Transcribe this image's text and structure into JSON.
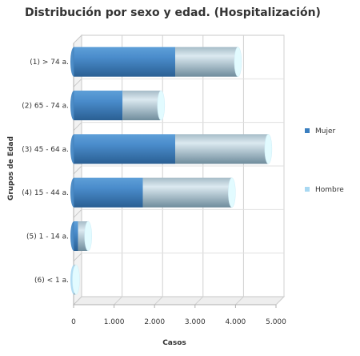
{
  "chart_data": {
    "type": "bar",
    "orientation": "horizontal",
    "stacked": true,
    "style": "3d-cylinder",
    "title": "Distribución por sexo y edad. (Hospitalización)",
    "xlabel": "Casos",
    "ylabel": "Grupos de Edad",
    "categories": [
      "(1) > 74 a.",
      "(2) 65 - 74 a.",
      "(3) 45 - 64 a.",
      "(4) 15 - 44 a.",
      "(5) 1 - 14 a.",
      "(6) < 1 a."
    ],
    "series": [
      {
        "name": "Mujer",
        "color": "#3a7fc0",
        "values": [
          2500,
          1200,
          2500,
          1700,
          100,
          0
        ]
      },
      {
        "name": "Hombre",
        "color": "#a8d8f2",
        "values": [
          1550,
          950,
          2300,
          2200,
          250,
          50
        ]
      }
    ],
    "xlim": [
      0,
      5000
    ],
    "xticks": [
      "0",
      "1.000",
      "2.000",
      "3.000",
      "4.000",
      "5.000"
    ],
    "grid": true,
    "legend_position": "right"
  }
}
